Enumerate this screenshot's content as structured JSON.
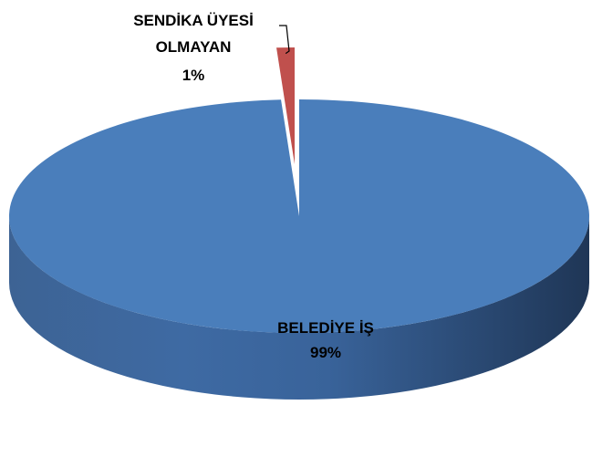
{
  "chart_data": {
    "type": "pie",
    "style": "3d",
    "title": "",
    "slices": [
      {
        "label": "BELEDİYE İŞ",
        "percent_label": "99%",
        "value": 99,
        "color": "#4a7ebb"
      },
      {
        "label_lines": [
          "SENDİKA ÜYESİ",
          "OLMAYAN"
        ],
        "percent_label": "1%",
        "value": 1,
        "color": "#c0504d",
        "exploded": true
      }
    ],
    "legend": "none",
    "data_labels": true
  }
}
